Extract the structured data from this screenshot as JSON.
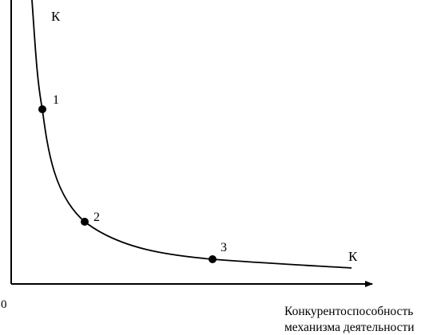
{
  "diagram": {
    "curve_label_top": "К",
    "curve_label_bottom": "К",
    "origin_label": "0",
    "x_axis_label_line1": "Конкурентоспособность",
    "x_axis_label_line2": "механизма деятельности",
    "points": [
      {
        "label": "1"
      },
      {
        "label": "2"
      },
      {
        "label": "3"
      }
    ],
    "colors": {
      "ink": "#000000",
      "background": "#ffffff"
    }
  }
}
